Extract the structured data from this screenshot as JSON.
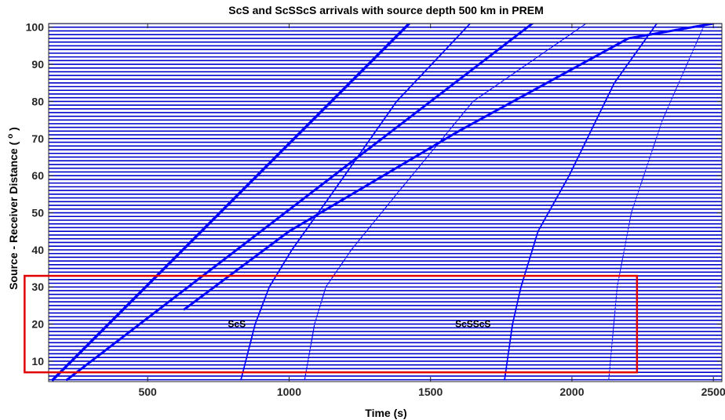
{
  "chart_data": {
    "type": "line",
    "title": "ScS and ScSScS arrivals with source depth 500 km in PREM",
    "xlabel": "Time (s)",
    "ylabel": "Source - Receiver Distance ( o )",
    "xlim": [
      150,
      2530
    ],
    "ylim": [
      4.5,
      101
    ],
    "xticks": [
      500,
      1000,
      1500,
      2000,
      2500
    ],
    "yticks": [
      10,
      20,
      30,
      40,
      50,
      60,
      70,
      80,
      90,
      100
    ],
    "trace_distances": {
      "start": 5,
      "end": 101,
      "step": 1
    },
    "trace_color": "#0000cc",
    "arrival_color": "#0000ff",
    "grid": false,
    "series": [
      {
        "x": [
          165,
          1425
        ],
        "y": [
          5,
          101
        ],
        "width": 3.5
      },
      {
        "x": [
          215,
          1860
        ],
        "y": [
          5,
          101
        ],
        "width": 3.0
      },
      {
        "x": [
          830,
          880,
          930,
          1010,
          1150,
          1380,
          1640
        ],
        "y": [
          5,
          20,
          30,
          40,
          55,
          80,
          101
        ],
        "width": 1.8
      },
      {
        "x": [
          1055,
          1090,
          1130,
          1220,
          1380,
          1650,
          2050
        ],
        "y": [
          5,
          20,
          30,
          40,
          55,
          80,
          101
        ],
        "width": 1.2
      },
      {
        "x": [
          1762,
          1790,
          1820,
          1880,
          1990,
          2150,
          2300
        ],
        "y": [
          5,
          20,
          30,
          45,
          60,
          85,
          101
        ],
        "width": 1.8
      },
      {
        "x": [
          2130,
          2160,
          2210,
          2320,
          2470
        ],
        "y": [
          5,
          30,
          50,
          75,
          101
        ],
        "width": 1.0
      },
      {
        "x": [
          630,
          1000,
          1600,
          2200,
          2500
        ],
        "y": [
          24,
          45,
          72,
          97,
          101
        ],
        "width": 3.0
      }
    ],
    "annotations": [
      {
        "text": "ScS",
        "x": 815,
        "y": 20
      },
      {
        "text": "ScSScS",
        "x": 1650,
        "y": 20
      }
    ],
    "highlight_box": {
      "x": [
        65,
        2230
      ],
      "y": [
        7,
        33
      ],
      "color": "#e00000"
    }
  }
}
